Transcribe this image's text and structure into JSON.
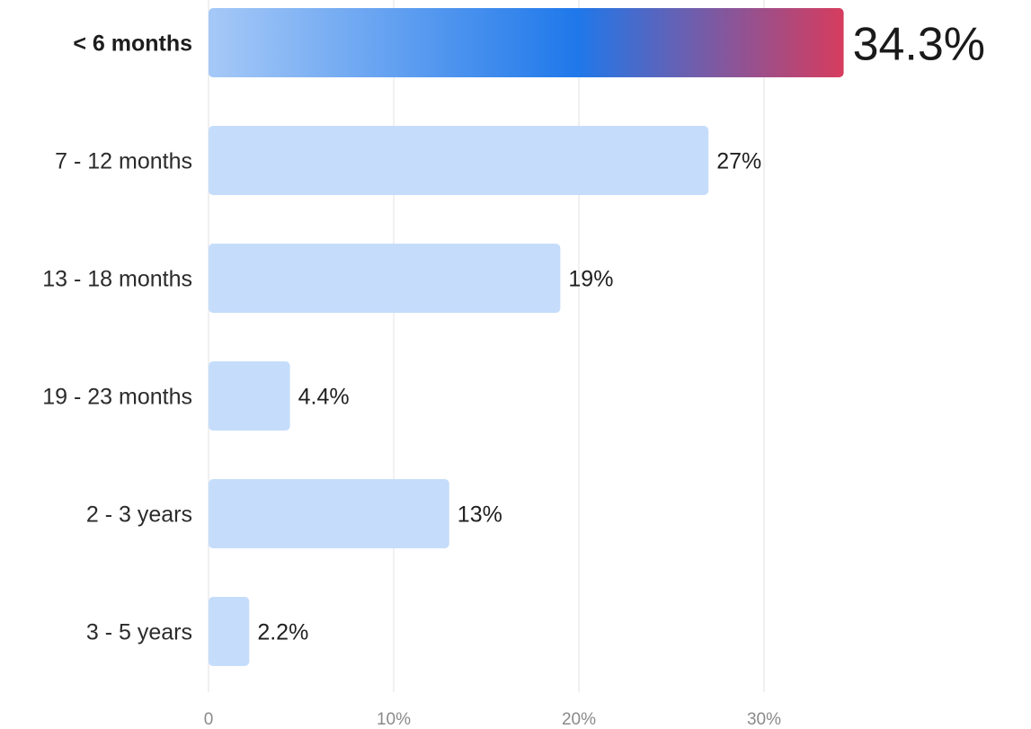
{
  "chart_data": {
    "type": "bar",
    "orientation": "horizontal",
    "categories": [
      "< 6 months",
      "7 - 12 months",
      "13 - 18 months",
      "19 - 23 months",
      "2 - 3 years",
      "3 - 5 years"
    ],
    "values": [
      34.3,
      27,
      19,
      4.4,
      13,
      2.2
    ],
    "value_labels": [
      "34.3%",
      "27%",
      "19%",
      "4.4%",
      "13%",
      "2.2%"
    ],
    "highlight_index": 0,
    "xlim": [
      0,
      40
    ],
    "x_ticks": [
      0,
      10,
      20,
      30
    ],
    "x_tick_labels": [
      "0",
      "10%",
      "20%",
      "30%"
    ],
    "grid": true,
    "title": "",
    "xlabel": "",
    "ylabel": ""
  },
  "colors": {
    "bar": "#c5ddfb",
    "highlight_gradient": [
      "#a6c9f7",
      "#1f78ea",
      "#d63c5e"
    ],
    "grid": "#ebebeb"
  }
}
